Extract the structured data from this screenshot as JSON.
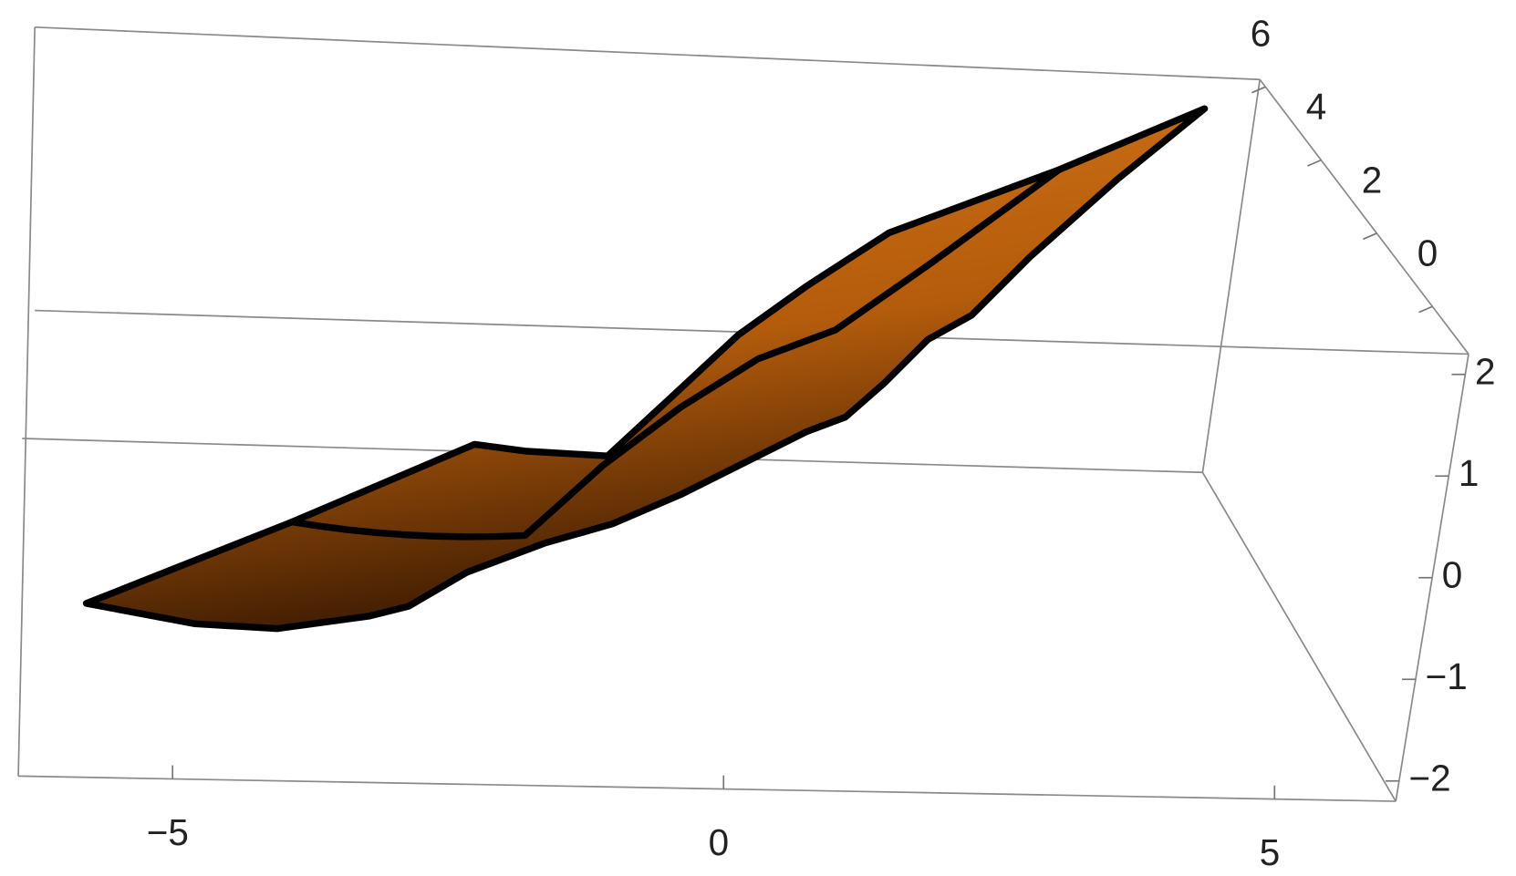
{
  "chart_data": {
    "type": "surface3d",
    "xlim": [
      -6.4,
      6.1
    ],
    "xticks": [
      {
        "value": -5,
        "label": "−5"
      },
      0,
      5
    ],
    "ylim": [
      -1.3,
      6.2
    ],
    "yticks": [
      0,
      2,
      4,
      6
    ],
    "zlim": [
      -2.2,
      2.2
    ],
    "zticks": [
      {
        "value": -2,
        "label": "−2"
      },
      {
        "value": -1,
        "label": "−1"
      },
      0,
      1,
      2
    ],
    "color": "#c0650f"
  }
}
